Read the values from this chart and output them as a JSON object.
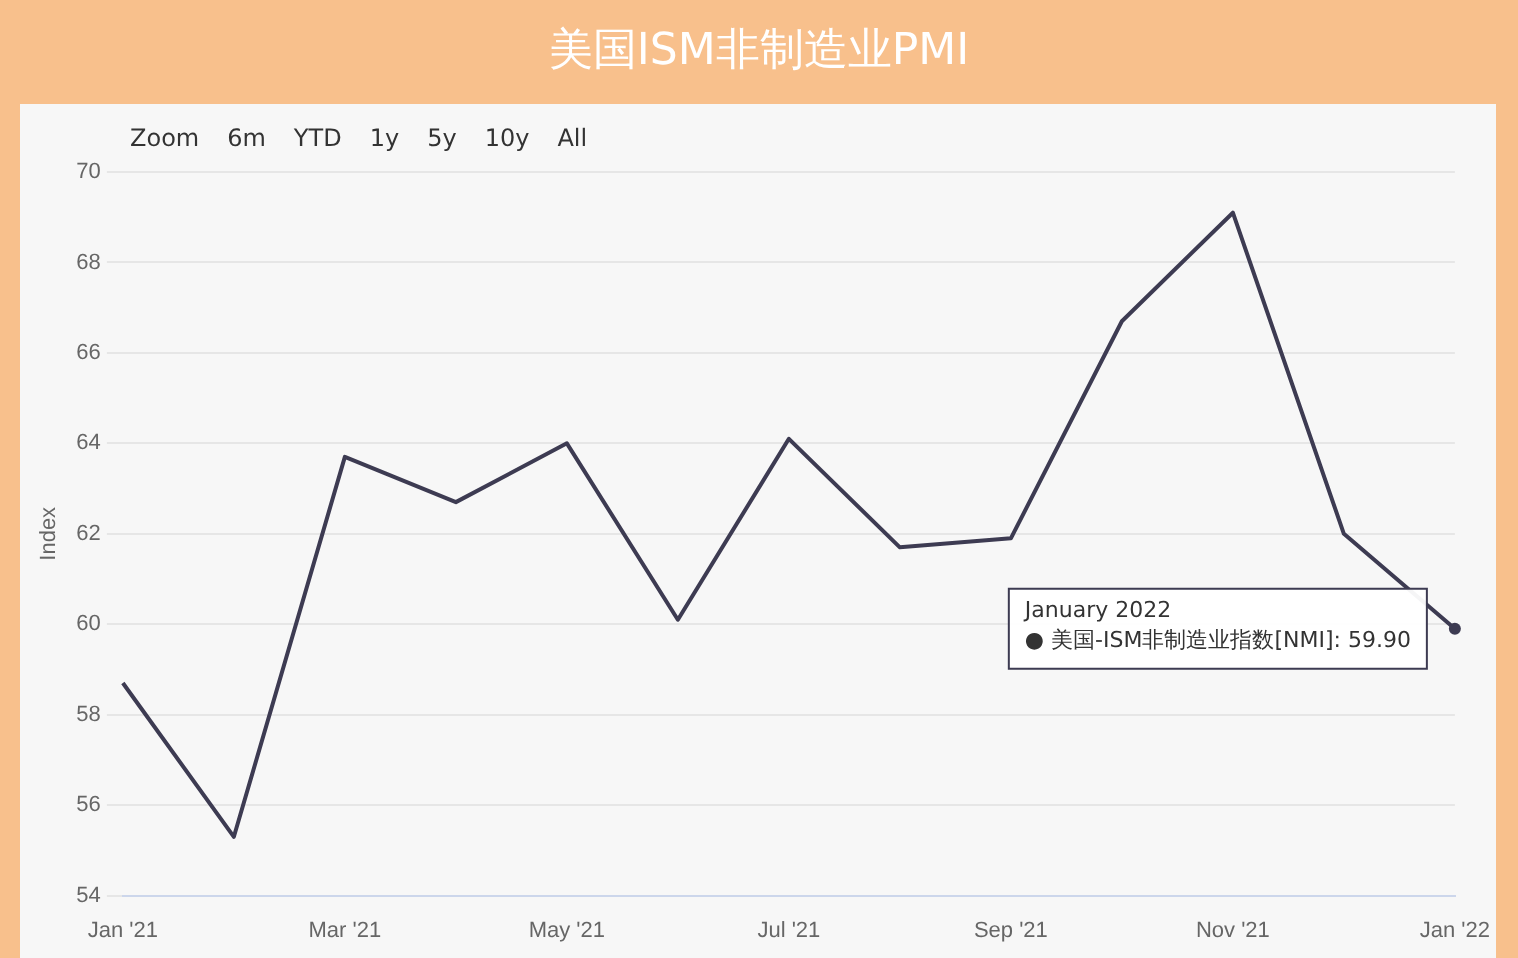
{
  "chart_data": {
    "type": "line",
    "title": "美国ISM非制造业PMI",
    "ylabel": "Index",
    "categories": [
      "Jan '21",
      null,
      "Mar '21",
      null,
      "May '21",
      null,
      "Jul '21",
      null,
      "Sep '21",
      null,
      "Nov '21",
      null,
      "Jan '22"
    ],
    "series": [
      {
        "color": "#3d3b52",
        "values": [
          58.7,
          55.3,
          63.7,
          62.7,
          64.0,
          60.1,
          64.1,
          61.7,
          61.9,
          66.7,
          69.1,
          62.0,
          59.9
        ]
      }
    ],
    "ylim": [
      54,
      70
    ],
    "yticks": [
      54,
      56,
      58,
      60,
      62,
      64,
      66,
      68,
      70
    ],
    "grid": "y",
    "legend": false,
    "marker": "none",
    "line_style": "solid",
    "annotations": [
      {
        "text": "January 2022\n● 美国-ISM非制造业指数[NMI]: 59.90",
        "x": "Jan '22",
        "y": 59.9
      },
      "Zoom",
      "6m",
      "YTD",
      "1y",
      "5y",
      "10y",
      "All"
    ]
  }
}
